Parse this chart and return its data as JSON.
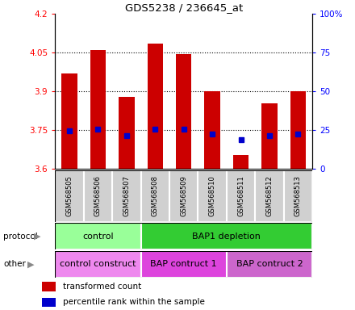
{
  "title": "GDS5238 / 236645_at",
  "samples": [
    "GSM568505",
    "GSM568506",
    "GSM568507",
    "GSM568508",
    "GSM568509",
    "GSM568510",
    "GSM568511",
    "GSM568512",
    "GSM568513"
  ],
  "bar_tops": [
    3.97,
    4.06,
    3.88,
    4.085,
    4.045,
    3.9,
    3.655,
    3.855,
    3.9
  ],
  "bar_bottoms": [
    3.6,
    3.6,
    3.6,
    3.6,
    3.6,
    3.6,
    3.6,
    3.6,
    3.6
  ],
  "blue_dots": [
    3.748,
    3.755,
    3.728,
    3.755,
    3.755,
    3.735,
    3.712,
    3.728,
    3.735
  ],
  "ylim": [
    3.6,
    4.2
  ],
  "yticks_left": [
    3.6,
    3.75,
    3.9,
    4.05,
    4.2
  ],
  "yticks_right": [
    0,
    25,
    50,
    75,
    100
  ],
  "bar_color": "#cc0000",
  "dot_color": "#0000cc",
  "protocol_groups": [
    {
      "label": "control",
      "start": 0,
      "end": 3,
      "color": "#99ff99"
    },
    {
      "label": "BAP1 depletion",
      "start": 3,
      "end": 9,
      "color": "#33cc33"
    }
  ],
  "other_groups": [
    {
      "label": "control construct",
      "start": 0,
      "end": 3,
      "color": "#ee88ee"
    },
    {
      "label": "BAP contruct 1",
      "start": 3,
      "end": 6,
      "color": "#dd44dd"
    },
    {
      "label": "BAP contruct 2",
      "start": 6,
      "end": 9,
      "color": "#cc66cc"
    }
  ],
  "legend_items": [
    {
      "label": "transformed count",
      "color": "#cc0000"
    },
    {
      "label": "percentile rank within the sample",
      "color": "#0000cc"
    }
  ],
  "bar_width": 0.55,
  "xlabels_bg": "#d0d0d0"
}
